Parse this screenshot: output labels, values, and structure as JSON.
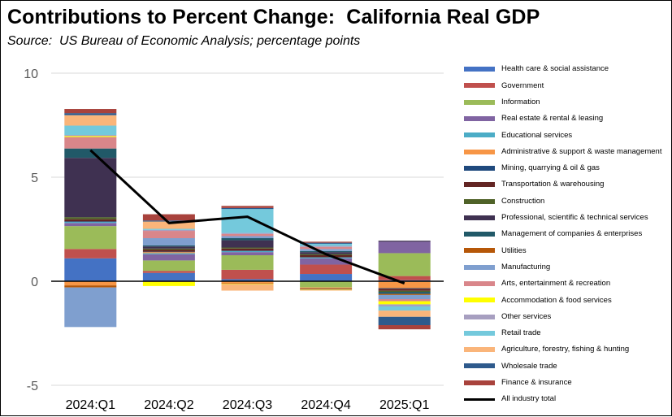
{
  "title": "Contributions to Percent Change:  California Real GDP",
  "subtitle": "Source:  US Bureau of Economic Analysis; percentage points",
  "chart_data": {
    "type": "bar",
    "stacked": true,
    "categories": [
      "2024:Q1",
      "2024:Q2",
      "2024:Q3",
      "2024:Q4",
      "2025:Q1"
    ],
    "ylim": [
      -5,
      10
    ],
    "yticks": [
      -5,
      0,
      5,
      10
    ],
    "ytick_labels": [
      "-5",
      "0",
      "5",
      "10"
    ],
    "grid": true,
    "legend_position": "right",
    "series": [
      {
        "name": "Health care & social assistance",
        "color": "#4472C4",
        "values": [
          1.1,
          0.4,
          0.1,
          0.35,
          0.05
        ]
      },
      {
        "name": "Government",
        "color": "#C0504D",
        "values": [
          0.45,
          0.1,
          0.45,
          0.45,
          0.2
        ]
      },
      {
        "name": "Information",
        "color": "#9BBB59",
        "values": [
          1.1,
          0.5,
          0.7,
          -0.3,
          1.1
        ]
      },
      {
        "name": "Real estate & rental & leasing",
        "color": "#8064A2",
        "values": [
          0.15,
          0.3,
          0.15,
          0.3,
          0.55
        ]
      },
      {
        "name": "Educational services",
        "color": "#4BACC6",
        "values": [
          0.05,
          0.05,
          0.05,
          0.05,
          -0.03
        ]
      },
      {
        "name": "Administrative & support & waste management",
        "color": "#F79646",
        "values": [
          -0.2,
          0.05,
          -0.1,
          -0.05,
          -0.3
        ]
      },
      {
        "name": "Mining, quarrying & oil & gas",
        "color": "#1F497D",
        "values": [
          0.03,
          0.02,
          0.02,
          -0.02,
          -0.03
        ]
      },
      {
        "name": "Transportation & warehousing",
        "color": "#632523",
        "values": [
          0.1,
          0.1,
          0.1,
          0.1,
          -0.1
        ]
      },
      {
        "name": "Construction",
        "color": "#4F6228",
        "values": [
          0.1,
          0.05,
          0.05,
          0.05,
          -0.05
        ]
      },
      {
        "name": "Professional, scientific & technical services",
        "color": "#3F3151",
        "values": [
          2.85,
          0.1,
          0.35,
          0.1,
          0.05
        ]
      },
      {
        "name": "Management of companies & enterprises",
        "color": "#215968",
        "values": [
          0.45,
          0.05,
          0.1,
          0.05,
          -0.1
        ]
      },
      {
        "name": "Utilities",
        "color": "#B65708",
        "values": [
          -0.1,
          -0.03,
          -0.03,
          -0.03,
          -0.05
        ]
      },
      {
        "name": "Manufacturing",
        "color": "#7F9FCF",
        "values": [
          -1.9,
          0.35,
          0.1,
          0.1,
          -0.2
        ]
      },
      {
        "name": "Arts, entertainment & recreation",
        "color": "#D9868A",
        "values": [
          0.55,
          0.35,
          0.1,
          0.1,
          -0.1
        ]
      },
      {
        "name": "Accommodation & food services",
        "color": "#FFFF00",
        "values": [
          0.05,
          -0.2,
          -0.02,
          -0.02,
          -0.15
        ]
      },
      {
        "name": "Other services",
        "color": "#A79FC0",
        "values": [
          0.05,
          0.05,
          0.05,
          0.05,
          -0.1
        ]
      },
      {
        "name": "Retail trade",
        "color": "#74C9DC",
        "values": [
          0.45,
          0.05,
          1.15,
          0.1,
          -0.2
        ]
      },
      {
        "name": "Agriculture, forestry, fishing & hunting",
        "color": "#FAB57A",
        "values": [
          0.5,
          0.35,
          -0.3,
          -0.03,
          -0.3
        ]
      },
      {
        "name": "Wholesale trade",
        "color": "#2E5A8C",
        "values": [
          0.1,
          0.05,
          0.05,
          0.05,
          -0.4
        ]
      },
      {
        "name": "Finance & insurance",
        "color": "#A8423C",
        "values": [
          0.2,
          0.3,
          0.1,
          0.05,
          -0.2
        ]
      }
    ],
    "total": {
      "name": "All industry total",
      "color": "#000000",
      "values": [
        6.3,
        2.8,
        3.1,
        1.3,
        -0.1
      ]
    }
  }
}
